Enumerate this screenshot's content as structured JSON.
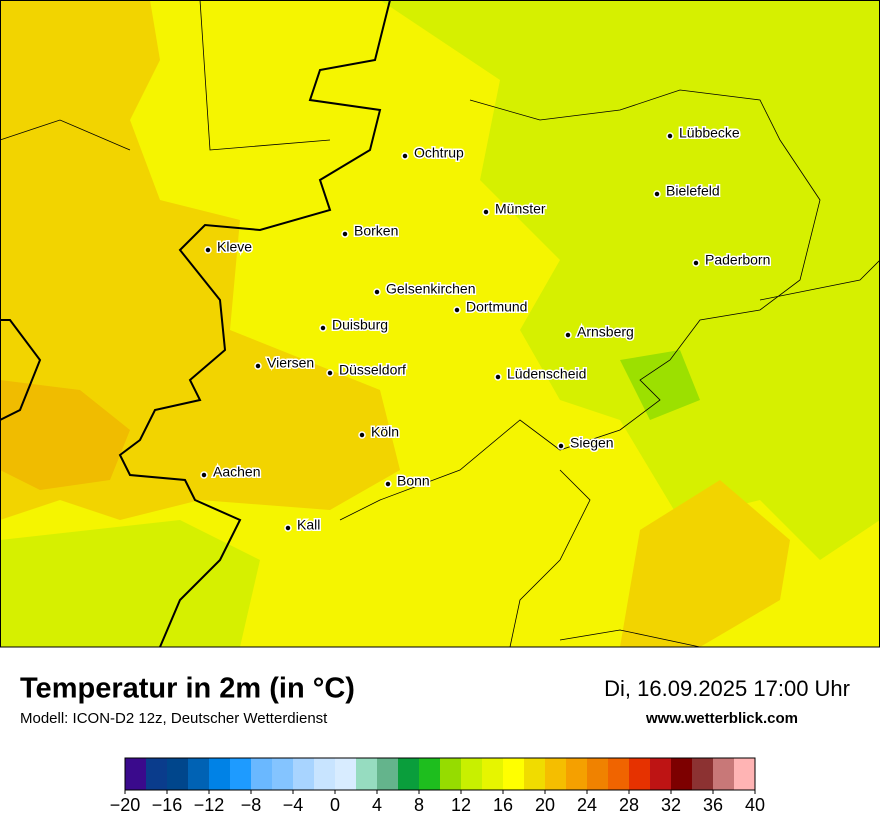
{
  "title": "Temperatur in 2m (in °C)",
  "subtitle": "Modell: ICON-D2 12z, Deutscher Wetterdienst",
  "datetime": "Di, 16.09.2025 17:00 Uhr",
  "website": "www.wetterblick.com",
  "cities": [
    "Ochtrup",
    "Lübbecke",
    "Bielefeld",
    "Münster",
    "Borken",
    "Kleve",
    "Paderborn",
    "Gelsenkirchen",
    "Dortmund",
    "Duisburg",
    "Arnsberg",
    "Viersen",
    "Düsseldorf",
    "Lüdenscheid",
    "Köln",
    "Siegen",
    "Aachen",
    "Bonn",
    "Kall"
  ],
  "colorbar": {
    "range": [
      -20,
      40
    ],
    "colors": [
      "#3a0a8c",
      "#0a3c8c",
      "#00468c",
      "#0062b4",
      "#0082e6",
      "#1e9bff",
      "#6ab8ff",
      "#84c4ff",
      "#a8d4ff",
      "#c8e4ff",
      "#d8ecff",
      "#96dcc0",
      "#64b48c",
      "#0a9e3c",
      "#1ebe1e",
      "#96dc00",
      "#c8f000",
      "#e6f500",
      "#ffff00",
      "#f0dc00",
      "#f5be00",
      "#f5a000",
      "#f08200",
      "#f06400",
      "#e63200",
      "#be1414",
      "#7d0000",
      "#8c3232",
      "#c87878",
      "#ffb4b4"
    ],
    "ticks": [
      {
        "value": -20,
        "label": "−20"
      },
      {
        "value": -16,
        "label": "−16"
      },
      {
        "value": -12,
        "label": "−12"
      },
      {
        "value": -8,
        "label": "−8"
      },
      {
        "value": -4,
        "label": "−4"
      },
      0,
      4,
      8,
      12,
      16,
      20,
      24,
      28,
      32,
      36,
      40
    ]
  }
}
